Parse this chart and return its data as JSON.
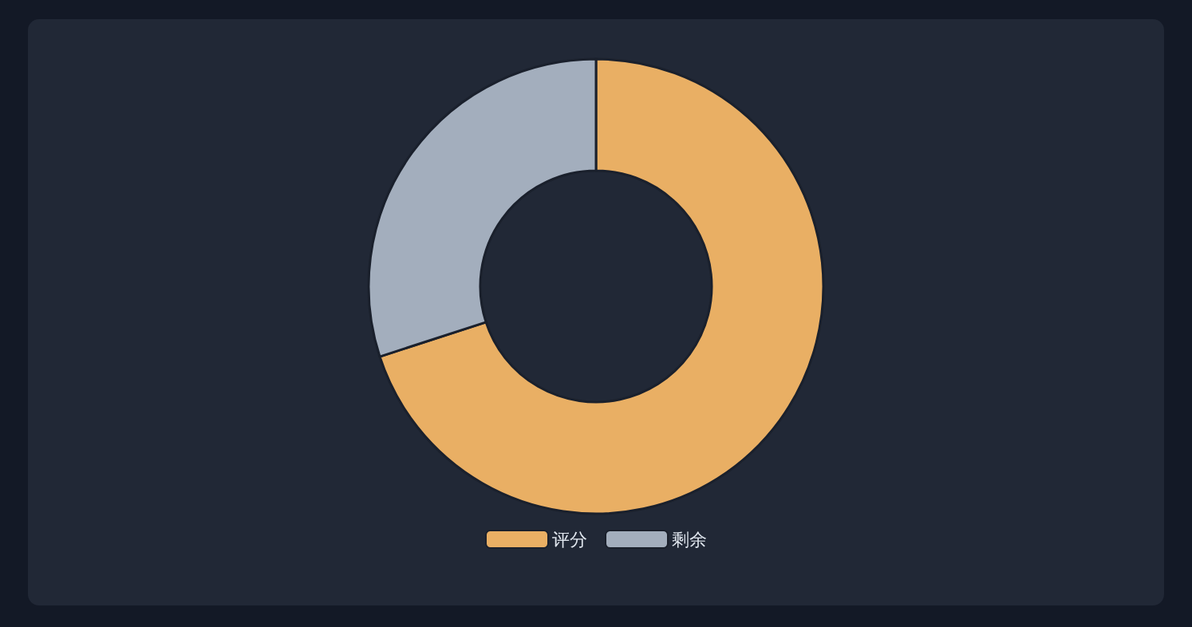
{
  "chart_data": {
    "type": "donut",
    "categories": [
      "评分",
      "剩余"
    ],
    "values": [
      70,
      30
    ],
    "colors": [
      "#e9af64",
      "#a3aebd"
    ],
    "legend": "bottom"
  }
}
